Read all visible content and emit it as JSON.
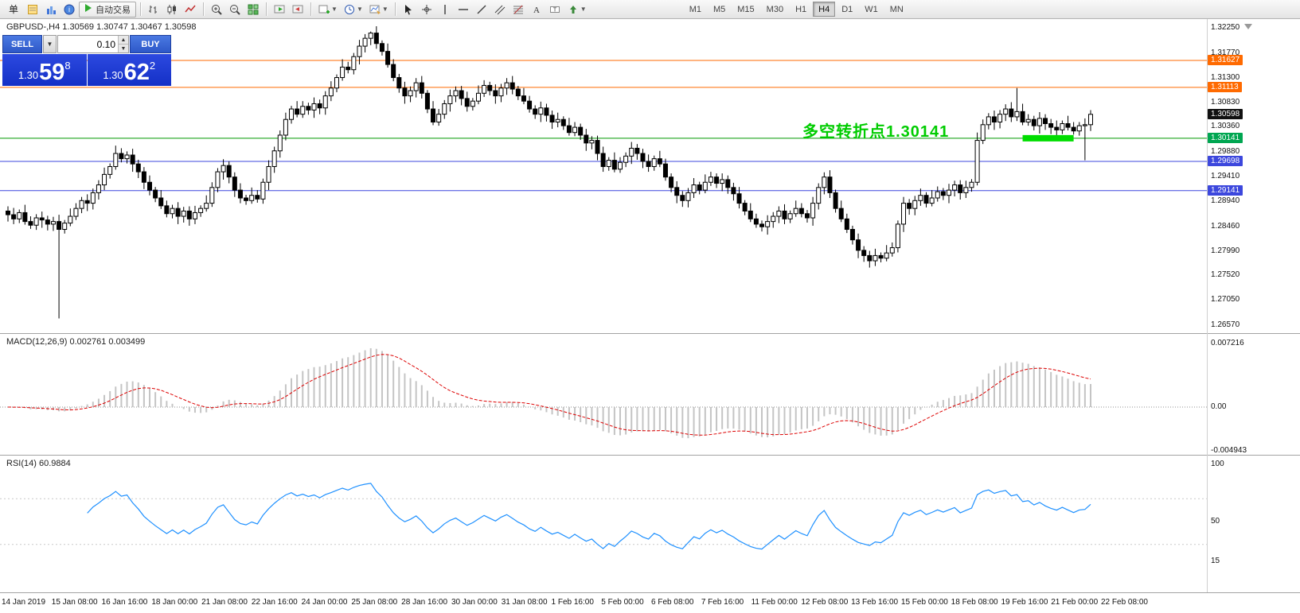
{
  "toolbar": {
    "menu_label": "单",
    "autotrading_label": "自动交易",
    "timeframes": [
      {
        "label": "M1",
        "active": false
      },
      {
        "label": "M5",
        "active": false
      },
      {
        "label": "M15",
        "active": false
      },
      {
        "label": "M30",
        "active": false
      },
      {
        "label": "H1",
        "active": false
      },
      {
        "label": "H4",
        "active": true
      },
      {
        "label": "D1",
        "active": false
      },
      {
        "label": "W1",
        "active": false
      },
      {
        "label": "MN",
        "active": false
      }
    ]
  },
  "chart": {
    "title": "GBPUSD-,H4 1.30569 1.30747 1.30467 1.30598",
    "symbol": "GBPUSD-",
    "period": "H4",
    "ohlc": {
      "open": "1.30569",
      "high": "1.30747",
      "low": "1.30467",
      "close": "1.30598"
    }
  },
  "trade_panel": {
    "sell_label": "SELL",
    "buy_label": "BUY",
    "lot_value": "0.10",
    "sell_price": {
      "small": "1.30",
      "big": "59",
      "sup": "8"
    },
    "buy_price": {
      "small": "1.30",
      "big": "62",
      "sup": "2"
    }
  },
  "annotation": {
    "text": "多空转折点1.30141",
    "color": "#00cc00"
  },
  "price_axis": {
    "ticks": [
      "1.32250",
      "1.31770",
      "1.31300",
      "1.30830",
      "1.30360",
      "1.29880",
      "1.29410",
      "1.28940",
      "1.28460",
      "1.27990",
      "1.27520",
      "1.27050",
      "1.26570"
    ]
  },
  "price_tags": [
    {
      "label": "1.31627",
      "value": 1.31627,
      "color": "#ff6a00"
    },
    {
      "label": "1.31113",
      "value": 1.31113,
      "color": "#ff6a00"
    },
    {
      "label": "1.30598",
      "value": 1.30598,
      "color": "#111111"
    },
    {
      "label": "1.30141",
      "value": 1.30141,
      "color": "#00a651"
    },
    {
      "label": "1.29698",
      "value": 1.29698,
      "color": "#3c47dd"
    },
    {
      "label": "1.29141",
      "value": 1.29141,
      "color": "#3c47dd"
    }
  ],
  "indicators": {
    "macd": {
      "label": "MACD(12,26,9) 0.002761 0.003499",
      "axis": [
        "0.007216",
        "0.00",
        "-0.004943"
      ],
      "axis_values": [
        0.007216,
        0,
        -0.004943
      ],
      "signal_color": "#dd0000",
      "hist_color": "#c4c4c4"
    },
    "rsi": {
      "label": "RSI(14) 60.9884",
      "axis": [
        "100",
        "50",
        "15"
      ],
      "axis_values": [
        100,
        50,
        15
      ],
      "levels": [
        70,
        30
      ],
      "line_color": "#1e90ff"
    }
  },
  "time_axis": [
    "14 Jan 2019",
    "15 Jan 08:00",
    "16 Jan 16:00",
    "18 Jan 00:00",
    "21 Jan 08:00",
    "22 Jan 16:00",
    "24 Jan 00:00",
    "25 Jan 08:00",
    "28 Jan 16:00",
    "30 Jan 00:00",
    "31 Jan 08:00",
    "1 Feb 16:00",
    "5 Feb 00:00",
    "6 Feb 08:00",
    "7 Feb 16:00",
    "11 Feb 00:00",
    "12 Feb 08:00",
    "13 Feb 16:00",
    "15 Feb 00:00",
    "18 Feb 08:00",
    "19 Feb 16:00",
    "21 Feb 00:00",
    "22 Feb 08:00"
  ],
  "chart_data": {
    "type": "candlestick",
    "symbol": "GBPUSD-",
    "timeframe": "H4",
    "price_max": 1.3225,
    "price_min": 1.2657,
    "current_price": 1.30598,
    "first_open": 1.2875,
    "closes": [
      1.2868,
      1.286,
      1.2872,
      1.2855,
      1.2848,
      1.2862,
      1.2858,
      1.285,
      1.2855,
      1.284,
      1.2852,
      1.2865,
      1.288,
      1.2895,
      1.289,
      1.291,
      1.2925,
      1.2945,
      1.296,
      1.2985,
      1.2975,
      1.2982,
      1.2965,
      1.295,
      1.293,
      1.2915,
      1.29,
      1.2885,
      1.287,
      1.288,
      1.2865,
      1.2875,
      1.286,
      1.2872,
      1.288,
      1.289,
      1.292,
      1.295,
      1.2962,
      1.294,
      1.2915,
      1.29,
      1.2895,
      1.2905,
      1.2898,
      1.293,
      1.296,
      1.299,
      1.302,
      1.305,
      1.307,
      1.306,
      1.3075,
      1.3068,
      1.308,
      1.3072,
      1.3095,
      1.311,
      1.313,
      1.315,
      1.3145,
      1.317,
      1.319,
      1.3205,
      1.3215,
      1.3195,
      1.318,
      1.3155,
      1.313,
      1.311,
      1.3095,
      1.3105,
      1.312,
      1.31,
      1.307,
      1.3045,
      1.306,
      1.308,
      1.3095,
      1.3105,
      1.309,
      1.3075,
      1.3085,
      1.31,
      1.3115,
      1.3105,
      1.3095,
      1.311,
      1.312,
      1.3108,
      1.3095,
      1.3085,
      1.307,
      1.306,
      1.3072,
      1.3058,
      1.3045,
      1.305,
      1.3038,
      1.3025,
      1.3035,
      1.302,
      1.3005,
      1.301,
      1.2985,
      1.296,
      1.2972,
      1.2955,
      1.2968,
      1.298,
      1.2995,
      1.2985,
      1.297,
      1.296,
      1.2975,
      1.2965,
      1.294,
      1.292,
      1.2905,
      1.2895,
      1.291,
      1.2925,
      1.2915,
      1.293,
      1.294,
      1.2928,
      1.2935,
      1.292,
      1.2908,
      1.289,
      1.2875,
      1.286,
      1.285,
      1.2845,
      1.2855,
      1.2865,
      1.2875,
      1.286,
      1.287,
      1.288,
      1.287,
      1.2862,
      1.289,
      1.292,
      1.294,
      1.291,
      1.288,
      1.286,
      1.284,
      1.282,
      1.28,
      1.279,
      1.278,
      1.279,
      1.2785,
      1.2795,
      1.2805,
      1.285,
      1.289,
      1.288,
      1.2895,
      1.2905,
      1.289,
      1.29,
      1.2912,
      1.2905,
      1.2915,
      1.2925,
      1.291,
      1.292,
      1.293,
      1.301,
      1.304,
      1.3055,
      1.3045,
      1.306,
      1.307,
      1.3055,
      1.3065,
      1.3045,
      1.305,
      1.3038,
      1.3052,
      1.3042,
      1.3035,
      1.303,
      1.3042,
      1.3035,
      1.3028,
      1.3038,
      1.304,
      1.30598
    ],
    "wick_offsets": [
      0.0009,
      0.0013,
      0.0006,
      0.0015,
      0.001,
      0.0007,
      0.0012,
      0.0008
    ],
    "overrides": {
      "9": {
        "low": 1.267
      },
      "64": {
        "high": 1.3218
      },
      "178": {
        "high": 1.311
      },
      "190": {
        "low": 1.2972
      }
    },
    "hlines": [
      {
        "price": 1.31627,
        "color": "#ff6a00"
      },
      {
        "price": 1.31113,
        "color": "#ff6a00"
      },
      {
        "price": 1.30141,
        "color": "#009900"
      },
      {
        "price": 1.29698,
        "color": "#3c47dd"
      },
      {
        "price": 1.29141,
        "color": "#3c47dd"
      }
    ],
    "highlight_segment": {
      "price": 1.30141,
      "from_bar": 179,
      "to_bar": 188,
      "color": "#00dd00"
    },
    "macd_params": {
      "fast": 12,
      "slow": 26,
      "signal": 9
    },
    "rsi_params": {
      "period": 14
    }
  }
}
